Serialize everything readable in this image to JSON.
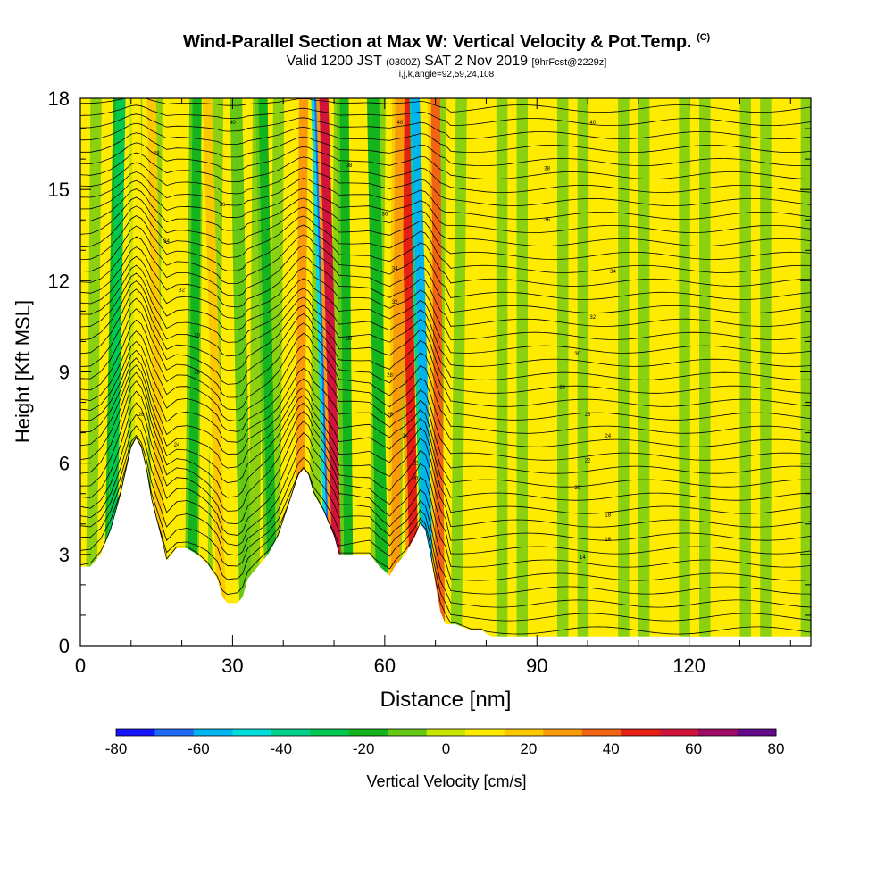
{
  "chart_data": {
    "type": "heatmap",
    "title": "Wind-Parallel Section at Max W: Vertical Velocity & Pot.Temp.",
    "title_mark": "(C)",
    "subtitle_parts": [
      "Valid 1200 JST ",
      "(0300Z)",
      " SAT 2 Nov 2019 ",
      "[9hrFcst@2229z]"
    ],
    "subtitle2": "i,j,k,angle=92,59,24,108",
    "xlabel": "Distance [nm]",
    "ylabel": "Height [Kft MSL]",
    "xlim": [
      0,
      144
    ],
    "ylim": [
      0,
      18
    ],
    "xticks": [
      0,
      30,
      60,
      90,
      120
    ],
    "yticks": [
      0,
      3,
      6,
      9,
      12,
      15,
      18
    ],
    "colorbar": {
      "label": "Vertical Velocity [cm/s]",
      "ticks": [
        -80,
        -60,
        -40,
        -20,
        0,
        20,
        40,
        60,
        80
      ],
      "levels": [
        -80,
        -70,
        -60,
        -50,
        -40,
        -30,
        -20,
        -10,
        0,
        10,
        20,
        30,
        40,
        50,
        60,
        70,
        80
      ],
      "colors": [
        "#1414ff",
        "#1e6cf5",
        "#00b4f0",
        "#00dcdc",
        "#00d28c",
        "#00c850",
        "#14b41e",
        "#64c814",
        "#c8e600",
        "#ffeb00",
        "#fcc800",
        "#fa9b0a",
        "#f06414",
        "#e61e14",
        "#d2143c",
        "#a00a64",
        "#640a8c"
      ]
    },
    "background_color": "#ffeb00",
    "terrain_kft": [
      [
        0,
        2.6
      ],
      [
        2,
        2.6
      ],
      [
        4,
        3.0
      ],
      [
        6,
        3.8
      ],
      [
        8,
        5.0
      ],
      [
        10,
        6.5
      ],
      [
        11,
        6.8
      ],
      [
        12,
        6.5
      ],
      [
        13,
        5.8
      ],
      [
        14,
        4.8
      ],
      [
        16,
        3.5
      ],
      [
        17,
        2.8
      ],
      [
        19,
        3.2
      ],
      [
        21,
        3.2
      ],
      [
        23,
        3.0
      ],
      [
        25,
        2.7
      ],
      [
        27,
        2.2
      ],
      [
        28,
        1.6
      ],
      [
        29,
        1.4
      ],
      [
        31,
        1.4
      ],
      [
        32,
        1.6
      ],
      [
        33,
        2.2
      ],
      [
        35,
        2.6
      ],
      [
        37,
        3.0
      ],
      [
        39,
        3.6
      ],
      [
        41,
        4.6
      ],
      [
        43,
        5.6
      ],
      [
        44,
        5.8
      ],
      [
        45,
        5.6
      ],
      [
        46,
        5.0
      ],
      [
        48,
        4.4
      ],
      [
        50,
        3.6
      ],
      [
        51,
        3.0
      ],
      [
        53,
        3.0
      ],
      [
        55,
        3.0
      ],
      [
        57,
        3.0
      ],
      [
        59,
        2.6
      ],
      [
        61,
        2.3
      ],
      [
        62,
        2.6
      ],
      [
        64,
        3.0
      ],
      [
        66,
        3.6
      ],
      [
        67,
        4.0
      ],
      [
        68,
        3.8
      ],
      [
        69,
        3.0
      ],
      [
        70,
        2.0
      ],
      [
        71,
        1.1
      ],
      [
        72,
        0.7
      ],
      [
        74,
        0.7
      ],
      [
        77,
        0.5
      ],
      [
        79,
        0.5
      ],
      [
        81,
        0.3
      ],
      [
        85,
        0.3
      ],
      [
        90,
        0.3
      ],
      [
        100,
        0.3
      ],
      [
        110,
        0.3
      ],
      [
        120,
        0.3
      ],
      [
        130,
        0.3
      ],
      [
        144,
        0.3
      ]
    ],
    "wave_bands": [
      {
        "x0": 47,
        "x1": 50,
        "w": -70
      },
      {
        "x0": 48,
        "x1": 51,
        "w": 60
      },
      {
        "x0": 66,
        "x1": 69,
        "w": -60
      },
      {
        "x0": 64,
        "x1": 66,
        "w": 55
      },
      {
        "x0": 70,
        "x1": 71,
        "w": 40
      },
      {
        "x0": 8,
        "x1": 6,
        "w": -25
      },
      {
        "x0": 25,
        "x1": 28,
        "w": 25
      },
      {
        "x0": 14,
        "x1": 16,
        "w": 20
      },
      {
        "x0": 44,
        "x1": 43,
        "w": 30
      },
      {
        "x0": 58,
        "x1": 60,
        "w": -20
      },
      {
        "x0": 63,
        "x1": 62,
        "w": 35
      },
      {
        "x0": 36,
        "x1": 38,
        "w": -15
      },
      {
        "x0": 52,
        "x1": 53,
        "w": -15
      },
      {
        "x0": 31,
        "x1": 33,
        "w": -10
      },
      {
        "x0": 11,
        "x1": 12,
        "w": 15
      },
      {
        "x0": 23,
        "x1": 22,
        "w": -15
      }
    ],
    "isentrope_count": 40,
    "isentrope_bottom_theta_K": 288,
    "isentrope_interval_K": 2,
    "isentrope_labels": [
      {
        "x": 30,
        "y": 17.2,
        "text": "40"
      },
      {
        "x": 63,
        "y": 17.2,
        "text": "40"
      },
      {
        "x": 101,
        "y": 17.2,
        "text": "40"
      },
      {
        "x": 15,
        "y": 16.2,
        "text": "38"
      },
      {
        "x": 53,
        "y": 15.8,
        "text": "38"
      },
      {
        "x": 92,
        "y": 15.7,
        "text": "38"
      },
      {
        "x": 28,
        "y": 14.5,
        "text": "36"
      },
      {
        "x": 60,
        "y": 14.2,
        "text": "36"
      },
      {
        "x": 92,
        "y": 14.0,
        "text": "36"
      },
      {
        "x": 17,
        "y": 13.3,
        "text": "34"
      },
      {
        "x": 62,
        "y": 12.4,
        "text": "34"
      },
      {
        "x": 105,
        "y": 12.3,
        "text": "34"
      },
      {
        "x": 20,
        "y": 11.7,
        "text": "32"
      },
      {
        "x": 62,
        "y": 11.3,
        "text": "32"
      },
      {
        "x": 101,
        "y": 10.8,
        "text": "32"
      },
      {
        "x": 23,
        "y": 10.2,
        "text": "30"
      },
      {
        "x": 53,
        "y": 10.1,
        "text": "30"
      },
      {
        "x": 98,
        "y": 9.6,
        "text": "30"
      },
      {
        "x": 23,
        "y": 9.0,
        "text": "28"
      },
      {
        "x": 61,
        "y": 8.9,
        "text": "28"
      },
      {
        "x": 95,
        "y": 8.5,
        "text": "28"
      },
      {
        "x": 12,
        "y": 7.6,
        "text": "26"
      },
      {
        "x": 61,
        "y": 7.6,
        "text": "26"
      },
      {
        "x": 100,
        "y": 7.6,
        "text": "26"
      },
      {
        "x": 19,
        "y": 6.6,
        "text": "24"
      },
      {
        "x": 64,
        "y": 6.9,
        "text": "24"
      },
      {
        "x": 104,
        "y": 6.9,
        "text": "24"
      },
      {
        "x": 66,
        "y": 6.0,
        "text": "22"
      },
      {
        "x": 100,
        "y": 6.1,
        "text": "22"
      },
      {
        "x": 66,
        "y": 5.5,
        "text": "20"
      },
      {
        "x": 98,
        "y": 5.2,
        "text": "20"
      },
      {
        "x": 104,
        "y": 4.3,
        "text": "18"
      },
      {
        "x": 104,
        "y": 3.5,
        "text": "16"
      },
      {
        "x": 99,
        "y": 2.9,
        "text": "14"
      }
    ]
  }
}
